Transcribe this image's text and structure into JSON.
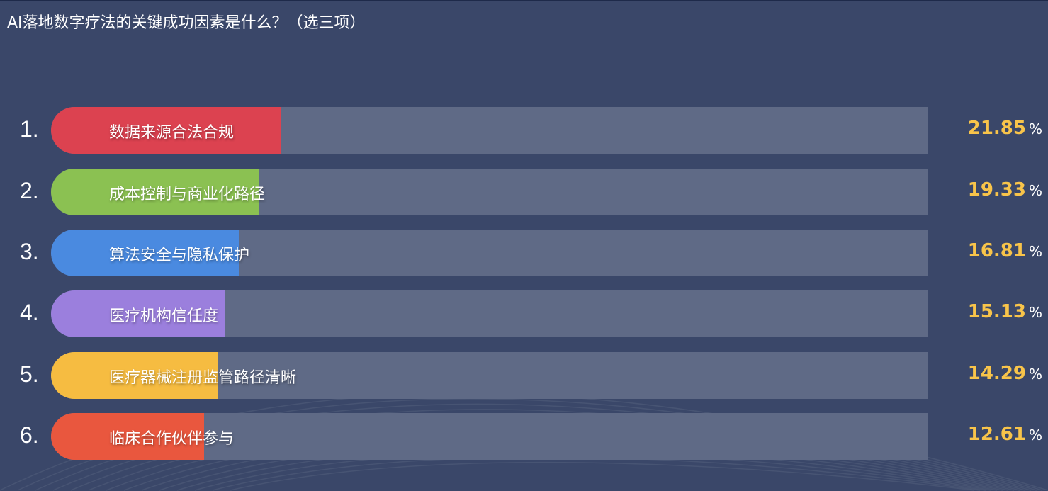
{
  "title": "AI落地数字疗法的关键成功因素是什么？（选三项）",
  "chart_data": {
    "type": "bar",
    "orientation": "horizontal",
    "title": "AI落地数字疗法的关键成功因素是什么？（选三项）",
    "unit": "%",
    "xlim": [
      0,
      100
    ],
    "grid": false,
    "items": [
      {
        "rank": "1.",
        "label": "数据来源合法合规",
        "value": 21.85,
        "color": "#dc4250"
      },
      {
        "rank": "2.",
        "label": "成本控制与商业化路径",
        "value": 19.33,
        "color": "#8bc152"
      },
      {
        "rank": "3.",
        "label": "算法安全与隐私保护",
        "value": 16.81,
        "color": "#4a8ae0"
      },
      {
        "rank": "4.",
        "label": "医疗机构信任度",
        "value": 15.13,
        "color": "#9b7fdd"
      },
      {
        "rank": "5.",
        "label": "医疗器械注册监管路径清晰",
        "value": 14.29,
        "color": "#f6bc41"
      },
      {
        "rank": "6.",
        "label": "临床合作伙伴参与",
        "value": 12.61,
        "color": "#e9573e"
      }
    ],
    "track_color": "#5f6a86",
    "value_color": "#f8c44a"
  }
}
